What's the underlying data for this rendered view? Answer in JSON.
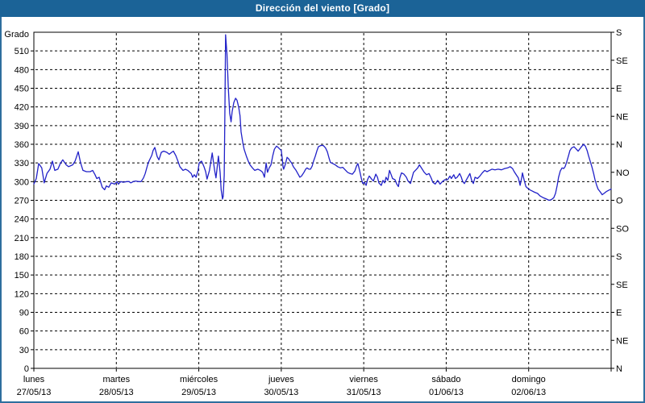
{
  "window": {
    "title": "Dirección del viento [Grado]"
  },
  "colors": {
    "titlebar_bg": "#1B6397",
    "window_border": "#2E6E9E",
    "plot_background": "#FFFFFF",
    "line": "#2121C8",
    "axis_and_grid": "#000000",
    "text": "#000000"
  },
  "chart_data": {
    "type": "line",
    "title": "Dirección del viento [Grado]",
    "grid": "dashed",
    "y_axis_left": {
      "label": "Grado",
      "min": 0,
      "max": 540,
      "tick_step": 30,
      "tick_labels": [
        "0",
        "30",
        "60",
        "90",
        "120",
        "150",
        "180",
        "210",
        "240",
        "270",
        "300",
        "330",
        "360",
        "390",
        "420",
        "450",
        "480",
        "510"
      ]
    },
    "y_axis_right": {
      "tick_step_degrees": 45,
      "labels_top_to_bottom": [
        "S",
        "SE",
        "E",
        "NE",
        "N",
        "NO",
        "O",
        "SO",
        "S",
        "SE",
        "E",
        "NE",
        "N"
      ]
    },
    "x_axis": {
      "days": [
        {
          "name": "lunes",
          "date": "27/05/13"
        },
        {
          "name": "martes",
          "date": "28/05/13"
        },
        {
          "name": "miércoles",
          "date": "29/05/13"
        },
        {
          "name": "jueves",
          "date": "30/05/13"
        },
        {
          "name": "viernes",
          "date": "31/05/13"
        },
        {
          "name": "sábado",
          "date": "01/06/13"
        },
        {
          "name": "domingo",
          "date": "02/06/13"
        }
      ],
      "total_hours": 168
    },
    "series": [
      {
        "name": "Dirección del viento",
        "color": "#2121C8",
        "points_hours_degrees": [
          [
            0,
            296
          ],
          [
            0.7,
            305
          ],
          [
            1.4,
            329
          ],
          [
            2.3,
            322
          ],
          [
            3,
            298
          ],
          [
            3.8,
            313
          ],
          [
            4.7,
            320
          ],
          [
            5.4,
            333
          ],
          [
            6.1,
            318
          ],
          [
            7,
            320
          ],
          [
            7.7,
            329
          ],
          [
            8.4,
            335
          ],
          [
            9.4,
            327
          ],
          [
            10.1,
            324
          ],
          [
            11.3,
            327
          ],
          [
            12,
            333
          ],
          [
            12.9,
            348
          ],
          [
            13.6,
            330
          ],
          [
            14.3,
            318
          ],
          [
            15.3,
            316
          ],
          [
            16.4,
            316
          ],
          [
            17.1,
            318
          ],
          [
            17.8,
            311
          ],
          [
            18.3,
            305
          ],
          [
            19,
            307
          ],
          [
            19.9,
            291
          ],
          [
            20.6,
            287
          ],
          [
            21.1,
            293
          ],
          [
            21.8,
            291
          ],
          [
            22.5,
            298
          ],
          [
            23.5,
            296
          ],
          [
            24.2,
            300
          ],
          [
            24.6,
            296
          ],
          [
            25.3,
            300
          ],
          [
            26,
            299
          ],
          [
            27,
            300
          ],
          [
            27.7,
            300
          ],
          [
            28.2,
            298
          ],
          [
            28.9,
            300
          ],
          [
            29.6,
            301
          ],
          [
            30.5,
            300
          ],
          [
            31.2,
            300
          ],
          [
            31.9,
            306
          ],
          [
            32.4,
            313
          ],
          [
            33.1,
            327
          ],
          [
            33.5,
            333
          ],
          [
            34.3,
            342
          ],
          [
            34.7,
            350
          ],
          [
            35.2,
            355
          ],
          [
            35.9,
            340
          ],
          [
            36.4,
            335
          ],
          [
            37.1,
            347
          ],
          [
            37.8,
            349
          ],
          [
            38.7,
            347
          ],
          [
            39.4,
            344
          ],
          [
            40.1,
            347
          ],
          [
            40.6,
            349
          ],
          [
            41.3,
            342
          ],
          [
            41.8,
            335
          ],
          [
            42.5,
            324
          ],
          [
            43.4,
            318
          ],
          [
            44.1,
            320
          ],
          [
            44.8,
            318
          ],
          [
            45.8,
            313
          ],
          [
            46.2,
            307
          ],
          [
            46.7,
            311
          ],
          [
            47.2,
            307
          ],
          [
            47.8,
            318
          ],
          [
            48.1,
            330
          ],
          [
            48.8,
            333
          ],
          [
            49.5,
            324
          ],
          [
            50,
            316
          ],
          [
            50.4,
            304
          ],
          [
            51.1,
            318
          ],
          [
            51.9,
            346
          ],
          [
            52.6,
            318
          ],
          [
            53,
            306
          ],
          [
            53.7,
            341
          ],
          [
            54.2,
            315
          ],
          [
            54.5,
            287
          ],
          [
            54.9,
            272
          ],
          [
            55.1,
            276
          ],
          [
            55.4,
            310
          ],
          [
            55.6,
            420
          ],
          [
            55.8,
            536
          ],
          [
            56.2,
            505
          ],
          [
            56.6,
            450
          ],
          [
            57,
            410
          ],
          [
            57.4,
            396
          ],
          [
            57.7,
            412
          ],
          [
            58.2,
            427
          ],
          [
            58.7,
            434
          ],
          [
            59.1,
            431
          ],
          [
            59.6,
            420
          ],
          [
            60,
            406
          ],
          [
            60.3,
            380
          ],
          [
            60.8,
            363
          ],
          [
            61.2,
            352
          ],
          [
            61.9,
            340
          ],
          [
            62.4,
            333
          ],
          [
            62.9,
            327
          ],
          [
            63.6,
            322
          ],
          [
            64.3,
            318
          ],
          [
            65.2,
            320
          ],
          [
            65.9,
            318
          ],
          [
            66.6,
            315
          ],
          [
            67.1,
            307
          ],
          [
            67.6,
            330
          ],
          [
            68,
            315
          ],
          [
            68.5,
            322
          ],
          [
            69,
            327
          ],
          [
            69.5,
            341
          ],
          [
            70,
            352
          ],
          [
            70.6,
            357
          ],
          [
            71.1,
            355
          ],
          [
            71.6,
            352
          ],
          [
            72,
            350
          ],
          [
            72.3,
            337
          ],
          [
            72.5,
            324
          ],
          [
            72.7,
            320
          ],
          [
            73.2,
            328
          ],
          [
            73.7,
            339
          ],
          [
            74.1,
            337
          ],
          [
            74.6,
            333
          ],
          [
            75.1,
            329
          ],
          [
            75.5,
            324
          ],
          [
            76.3,
            318
          ],
          [
            77,
            311
          ],
          [
            77.4,
            307
          ],
          [
            77.9,
            309
          ],
          [
            78.6,
            315
          ],
          [
            79.1,
            320
          ],
          [
            79.5,
            322
          ],
          [
            80,
            320
          ],
          [
            80.5,
            320
          ],
          [
            81,
            325
          ],
          [
            81.4,
            333
          ],
          [
            81.9,
            341
          ],
          [
            82.4,
            350
          ],
          [
            82.8,
            356
          ],
          [
            83.5,
            358
          ],
          [
            84.2,
            358
          ],
          [
            84.9,
            354
          ],
          [
            85.4,
            348
          ],
          [
            85.9,
            338
          ],
          [
            86.3,
            331
          ],
          [
            87,
            329
          ],
          [
            87.7,
            327
          ],
          [
            88.4,
            324
          ],
          [
            89.2,
            322
          ],
          [
            89.9,
            323
          ],
          [
            90.6,
            319
          ],
          [
            91.3,
            315
          ],
          [
            92,
            313
          ],
          [
            92.7,
            312
          ],
          [
            93.4,
            317
          ],
          [
            93.9,
            325
          ],
          [
            94.3,
            329
          ],
          [
            94.8,
            318
          ],
          [
            95.3,
            305
          ],
          [
            95.7,
            297
          ],
          [
            96.2,
            299
          ],
          [
            96.7,
            294
          ],
          [
            97.1,
            303
          ],
          [
            97.6,
            309
          ],
          [
            98.3,
            304
          ],
          [
            98.8,
            301
          ],
          [
            99.5,
            312
          ],
          [
            100,
            307
          ],
          [
            100.4,
            298
          ],
          [
            101.1,
            294
          ],
          [
            101.6,
            302
          ],
          [
            102.1,
            298
          ],
          [
            102.5,
            307
          ],
          [
            103,
            302
          ],
          [
            103.5,
            318
          ],
          [
            104,
            311
          ],
          [
            104.4,
            305
          ],
          [
            105.1,
            303
          ],
          [
            105.6,
            296
          ],
          [
            106.1,
            292
          ],
          [
            106.5,
            306
          ],
          [
            107,
            314
          ],
          [
            107.7,
            312
          ],
          [
            108.4,
            307
          ],
          [
            108.9,
            301
          ],
          [
            109.6,
            297
          ],
          [
            110.1,
            307
          ],
          [
            110.5,
            315
          ],
          [
            111.2,
            319
          ],
          [
            111.7,
            322
          ],
          [
            112.2,
            327
          ],
          [
            112.9,
            321
          ],
          [
            113.6,
            315
          ],
          [
            114.3,
            311
          ],
          [
            115,
            313
          ],
          [
            115.7,
            305
          ],
          [
            116.1,
            299
          ],
          [
            116.8,
            296
          ],
          [
            117.5,
            302
          ],
          [
            118.2,
            296
          ],
          [
            118.9,
            300
          ],
          [
            119.6,
            303
          ],
          [
            120.4,
            303
          ],
          [
            121.1,
            309
          ],
          [
            121.5,
            305
          ],
          [
            122.2,
            311
          ],
          [
            122.7,
            305
          ],
          [
            123.2,
            307
          ],
          [
            123.9,
            313
          ],
          [
            124.4,
            307
          ],
          [
            124.8,
            300
          ],
          [
            125.3,
            297
          ],
          [
            125.8,
            302
          ],
          [
            126.5,
            309
          ],
          [
            126.9,
            313
          ],
          [
            127.4,
            302
          ],
          [
            127.9,
            297
          ],
          [
            128.4,
            307
          ],
          [
            129.1,
            305
          ],
          [
            129.8,
            309
          ],
          [
            130.5,
            314
          ],
          [
            131.2,
            318
          ],
          [
            131.9,
            316
          ],
          [
            132.6,
            318
          ],
          [
            133.3,
            320
          ],
          [
            134.2,
            319
          ],
          [
            135.1,
            320
          ],
          [
            136.1,
            319
          ],
          [
            137,
            321
          ],
          [
            137.9,
            322
          ],
          [
            138.6,
            324
          ],
          [
            139.3,
            321
          ],
          [
            139.8,
            316
          ],
          [
            140.5,
            310
          ],
          [
            141,
            306
          ],
          [
            141.5,
            294
          ],
          [
            142,
            307
          ],
          [
            142.2,
            314
          ],
          [
            142.7,
            302
          ],
          [
            143.2,
            292
          ],
          [
            143.6,
            290
          ],
          [
            144.3,
            287
          ],
          [
            145,
            285
          ],
          [
            145.7,
            283
          ],
          [
            146.6,
            281
          ],
          [
            147.3,
            277
          ],
          [
            148.3,
            274
          ],
          [
            149.2,
            272
          ],
          [
            149.9,
            270
          ],
          [
            150.6,
            271
          ],
          [
            151.3,
            274
          ],
          [
            151.8,
            281
          ],
          [
            152.3,
            294
          ],
          [
            152.7,
            307
          ],
          [
            153.2,
            317
          ],
          [
            153.7,
            322
          ],
          [
            154.2,
            321
          ],
          [
            154.6,
            324
          ],
          [
            155.1,
            332
          ],
          [
            155.6,
            342
          ],
          [
            156,
            350
          ],
          [
            156.5,
            354
          ],
          [
            157.2,
            356
          ],
          [
            157.9,
            352
          ],
          [
            158.4,
            349
          ],
          [
            158.8,
            352
          ],
          [
            159.5,
            357
          ],
          [
            160,
            360
          ],
          [
            160.5,
            357
          ],
          [
            161,
            350
          ],
          [
            161.4,
            342
          ],
          [
            161.9,
            333
          ],
          [
            162.4,
            324
          ],
          [
            162.9,
            313
          ],
          [
            163.3,
            303
          ],
          [
            163.8,
            294
          ],
          [
            164.2,
            288
          ],
          [
            164.9,
            283
          ],
          [
            165.4,
            279
          ],
          [
            165.9,
            281
          ],
          [
            166.6,
            284
          ],
          [
            167.3,
            286
          ],
          [
            168,
            288
          ]
        ]
      }
    ]
  }
}
